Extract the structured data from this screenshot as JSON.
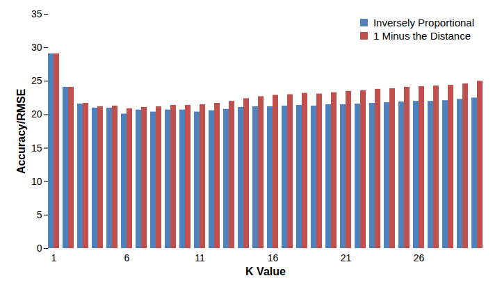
{
  "chart_data": {
    "type": "bar",
    "x_label": "K Value",
    "y_label": "Accuracy/RMSE",
    "categories": [
      1,
      null,
      null,
      null,
      null,
      6,
      null,
      null,
      null,
      null,
      11,
      null,
      null,
      null,
      null,
      16,
      null,
      null,
      null,
      null,
      21,
      null,
      null,
      null,
      null,
      26,
      null,
      null,
      null,
      null
    ],
    "series": [
      {
        "name": "Inversely Proportional",
        "color": "#4f81bd",
        "values": [
          29.1,
          24.1,
          21.6,
          21.0,
          21.0,
          20.1,
          20.7,
          20.4,
          20.7,
          20.7,
          20.4,
          20.6,
          20.8,
          21.1,
          21.2,
          21.2,
          21.3,
          21.4,
          21.3,
          21.5,
          21.5,
          21.6,
          21.7,
          21.8,
          21.9,
          22.0,
          22.0,
          22.1,
          22.3,
          22.5
        ]
      },
      {
        "name": "1 Minus the Distance",
        "color": "#c0504d",
        "values": [
          29.1,
          24.1,
          21.7,
          21.2,
          21.3,
          20.9,
          21.1,
          21.2,
          21.4,
          21.4,
          21.5,
          21.7,
          22.0,
          22.4,
          22.7,
          22.9,
          23.0,
          23.2,
          23.1,
          23.3,
          23.5,
          23.6,
          23.8,
          23.9,
          24.1,
          24.2,
          24.3,
          24.4,
          24.6,
          25.0
        ]
      }
    ],
    "ylim": [
      0,
      35
    ],
    "yticks": [
      0,
      5,
      10,
      15,
      20,
      25,
      30,
      35
    ],
    "grid": false,
    "legend": "top-right"
  }
}
